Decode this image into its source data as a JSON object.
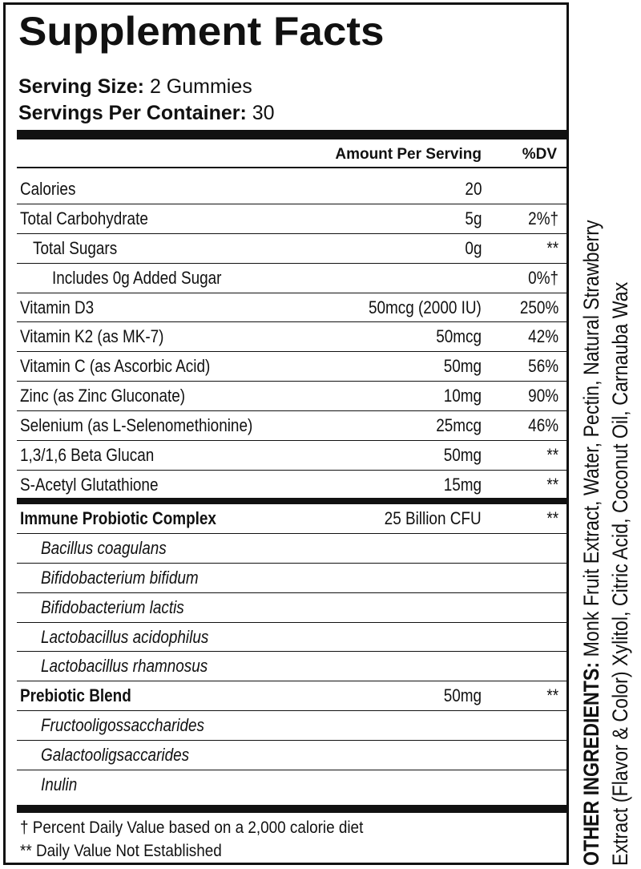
{
  "title": "Supplement Facts",
  "serving": {
    "size_label": "Serving Size:",
    "size_value": " 2 Gummies",
    "per_container_label": "Servings Per Container:",
    "per_container_value": " 30"
  },
  "header": {
    "amount": "Amount Per Serving",
    "dv": "%DV"
  },
  "rows_a": [
    {
      "name": "Calories",
      "amount": "20",
      "dv": ""
    },
    {
      "name": "Total Carbohydrate",
      "amount": "5g",
      "dv": "2%†"
    },
    {
      "name": "Total Sugars",
      "amount": "0g",
      "dv": "**"
    },
    {
      "name": "Includes 0g Added Sugar",
      "amount": "",
      "dv": "0%†"
    },
    {
      "name": "Vitamin D3",
      "amount": "50mcg (2000 IU)",
      "dv": "250%"
    },
    {
      "name": "Vitamin K2 (as MK-7)",
      "amount": "50mcg",
      "dv": "42%"
    },
    {
      "name": "Vitamin C (as Ascorbic Acid)",
      "amount": "50mg",
      "dv": "56%"
    },
    {
      "name": "Zinc (as Zinc Gluconate)",
      "amount": "10mg",
      "dv": "90%"
    },
    {
      "name": "Selenium (as L-Selenomethionine)",
      "amount": "25mcg",
      "dv": "46%"
    },
    {
      "name": "1,3/1,6 Beta Glucan",
      "amount": "50mg",
      "dv": "**"
    },
    {
      "name": "S-Acetyl Glutathione",
      "amount": "15mg",
      "dv": "**"
    }
  ],
  "rows_b": [
    {
      "name": "Immune Probiotic Complex",
      "amount": "25 Billion CFU",
      "dv": "**"
    },
    {
      "name": "Bacillus coagulans",
      "amount": "",
      "dv": ""
    },
    {
      "name": "Bifidobacterium bifidum",
      "amount": "",
      "dv": ""
    },
    {
      "name": "Bifidobacterium lactis",
      "amount": "",
      "dv": ""
    },
    {
      "name": "Lactobacillus acidophilus",
      "amount": "",
      "dv": ""
    },
    {
      "name": "Lactobacillus rhamnosus",
      "amount": "",
      "dv": ""
    },
    {
      "name": "Prebiotic Blend",
      "amount": "50mg",
      "dv": "**"
    },
    {
      "name": "Fructooligossaccharides",
      "amount": "",
      "dv": ""
    },
    {
      "name": "Galactooligsaccarides",
      "amount": "",
      "dv": ""
    },
    {
      "name": "Inulin",
      "amount": "",
      "dv": ""
    }
  ],
  "footnotes": {
    "dagger": "† Percent Daily Value based on a 2,000 calorie diet",
    "star": "** Daily Value Not Established"
  },
  "other_ingredients": {
    "label": "OTHER INGREDIENTS:",
    "line1": " Monk Fruit Extract,  Water,  Pectin,  Natural Strawberry",
    "line2": "Extract (Flavor & Color)  Xylitol, Citric Acid,  Coconut Oil,  Carnauba Wax"
  }
}
